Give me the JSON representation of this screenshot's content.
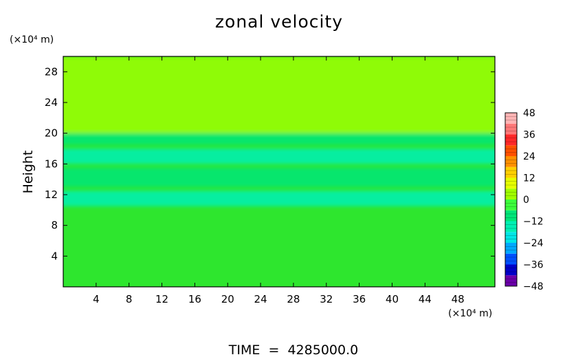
{
  "chart_data": {
    "type": "heatmap",
    "title": "zonal velocity",
    "ylabel": "Height",
    "x_unit_label": "(×10⁴ m)",
    "y_unit_label": "(×10⁴ m)",
    "xlim": [
      0,
      52.5
    ],
    "ylim": [
      0,
      30
    ],
    "xticks": [
      4,
      8,
      12,
      16,
      20,
      24,
      28,
      32,
      36,
      40,
      44,
      48
    ],
    "yticks": [
      4,
      8,
      12,
      16,
      20,
      24,
      28
    ],
    "colorbar": {
      "labels": [
        "48",
        "36",
        "24",
        "12",
        "0",
        "−12",
        "−24",
        "−36",
        "−48"
      ],
      "values": [
        48,
        36,
        24,
        12,
        0,
        -12,
        -24,
        -36,
        -48
      ],
      "range": [
        -48,
        48
      ],
      "colors": [
        "#6a00a8",
        "#0000c8",
        "#0050ff",
        "#00a8ff",
        "#00e6e6",
        "#00f0b4",
        "#00e678",
        "#3cff3c",
        "#a0ff00",
        "#e6ff00",
        "#ffd000",
        "#ff9000",
        "#ff5000",
        "#ff2828",
        "#ff7878",
        "#ffb4b4"
      ]
    },
    "field_description": "Mostly near-zero (green) field; negative zonal velocity bands (cyan/blue, about −10 to −25) between heights 10 and 20; slightly positive patches near heights 18–20",
    "bands": [
      {
        "y_range": [
          0,
          10
        ],
        "value": 0
      },
      {
        "y_range": [
          10.5,
          12.5
        ],
        "value": -14
      },
      {
        "y_range": [
          13,
          15.5
        ],
        "value": -10
      },
      {
        "y_range": [
          16,
          18
        ],
        "value": -16
      },
      {
        "y_range": [
          18.5,
          20
        ],
        "value": -12
      },
      {
        "y_range": [
          20,
          30
        ],
        "value": 2
      }
    ]
  },
  "footer": {
    "time_label": "TIME  =  4285000.0"
  }
}
